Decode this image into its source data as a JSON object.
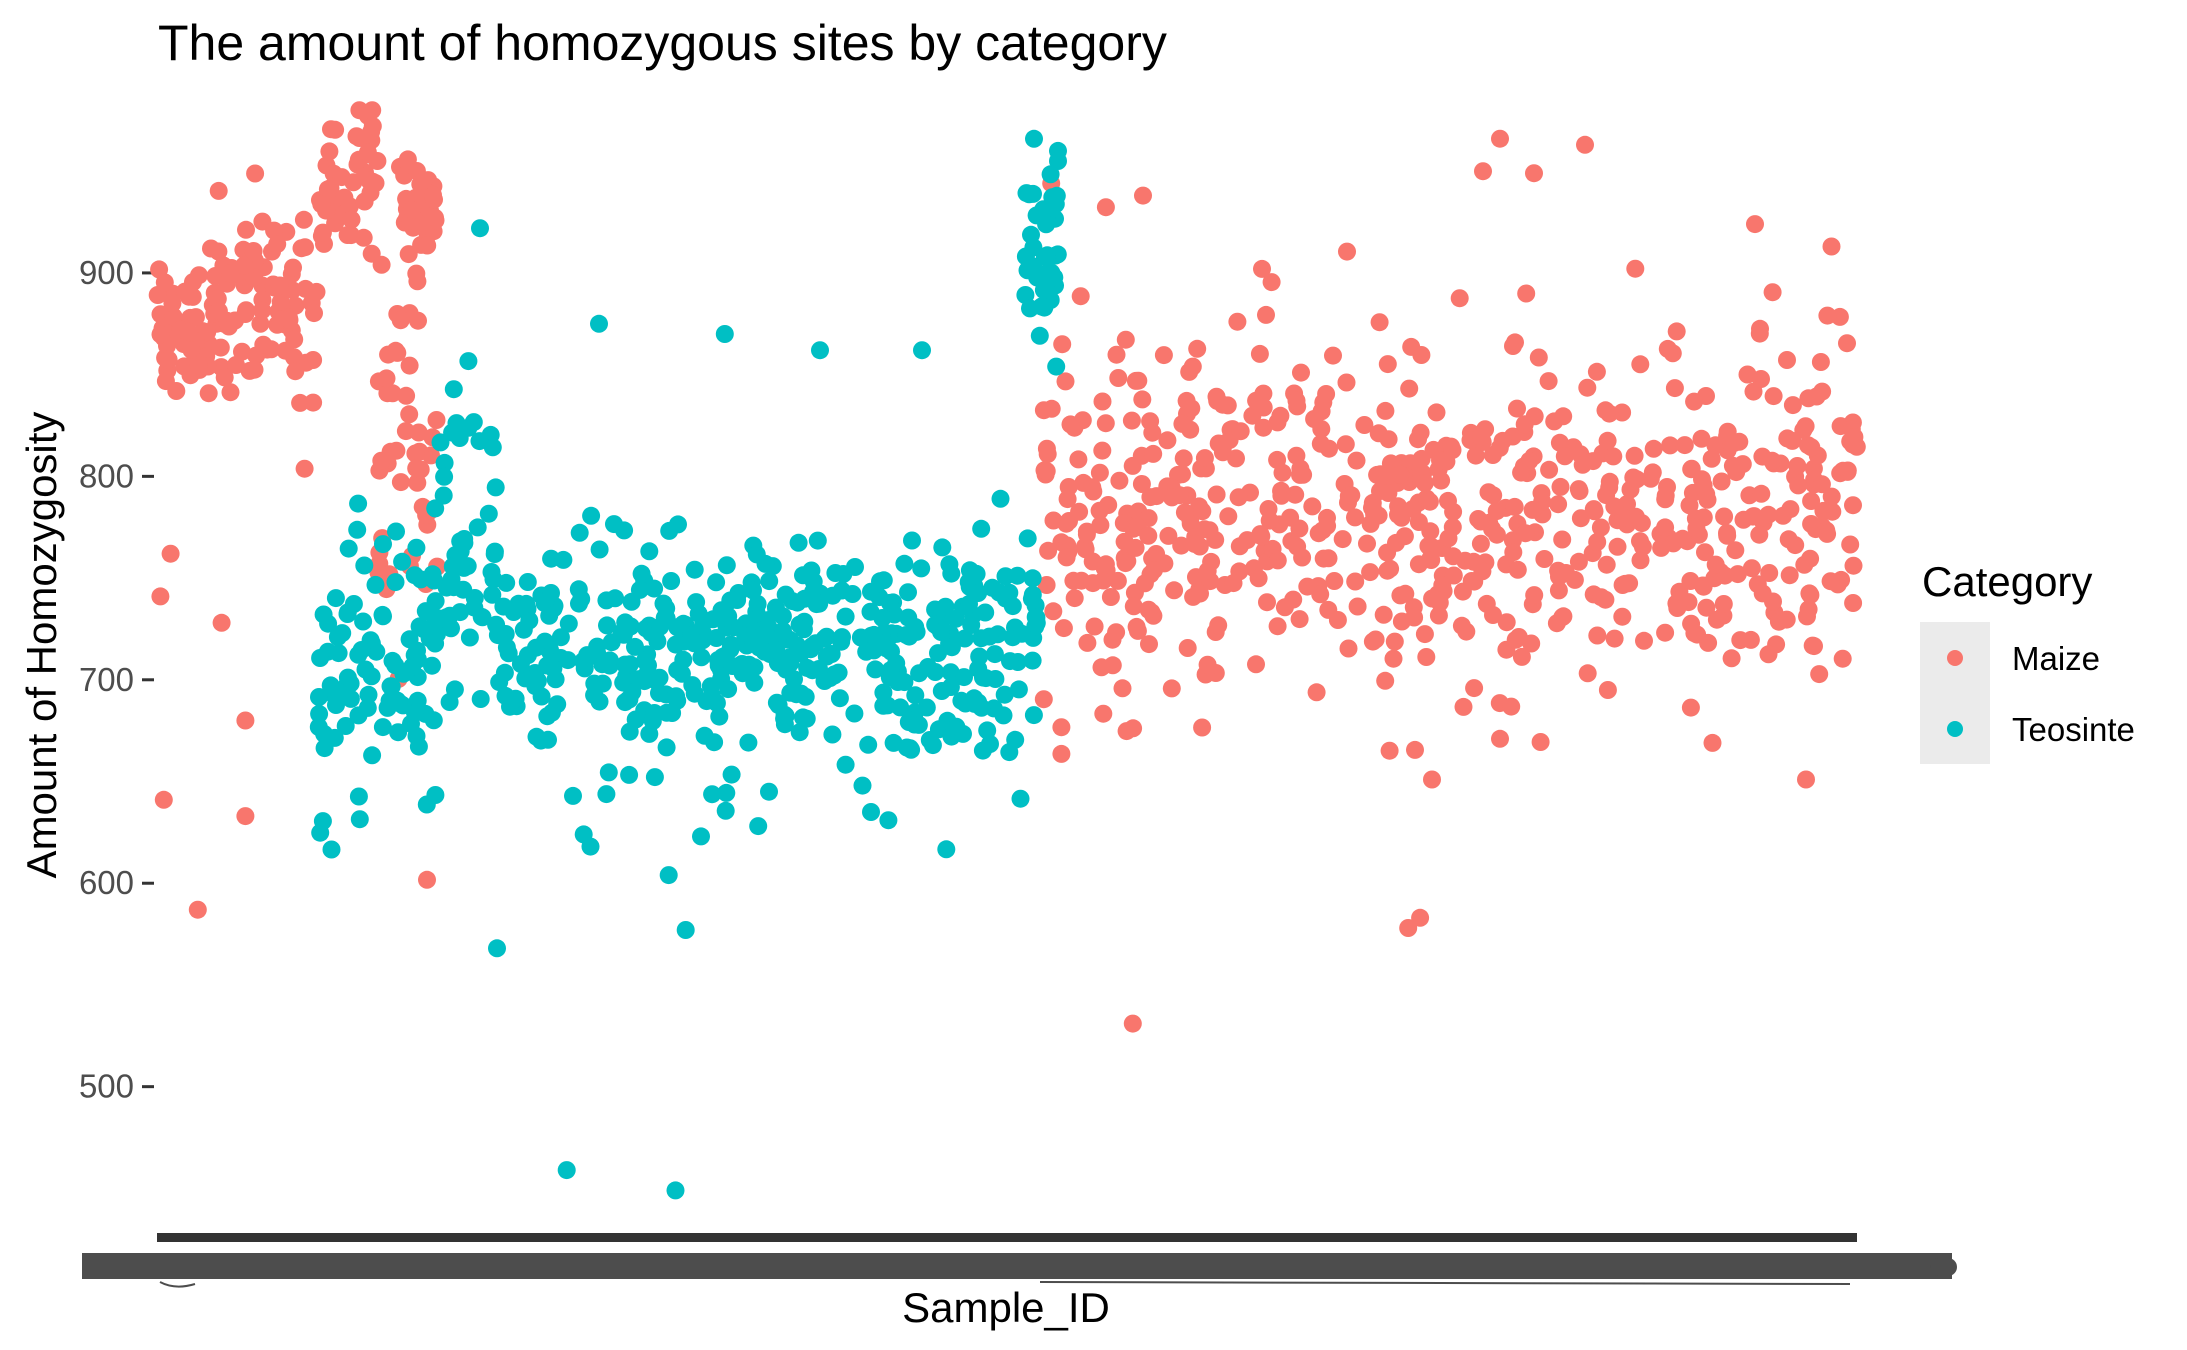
{
  "chart_data": {
    "type": "scatter",
    "title": "The amount of homozygous sites by category",
    "xlabel": "Sample_ID",
    "ylabel": "Amount of Homozygosity",
    "x_axis": "categorical, one position per sample; tick labels overplotted and illegible",
    "y_ticks": [
      500,
      600,
      700,
      800,
      900
    ],
    "ylim": [
      432,
      985
    ],
    "grid": false,
    "legend": {
      "title": "Category",
      "position": "right",
      "entries": [
        "Maize",
        "Teosinte"
      ]
    },
    "colors": {
      "Maize": "#F8766D",
      "Teosinte": "#00BFC4"
    },
    "series": [
      {
        "name": "Maize",
        "segments": [
          {
            "x_range": [
              0.0,
              0.095
            ],
            "y_center": 880,
            "y_spread": 22
          },
          {
            "x_range": [
              0.095,
              0.13
            ],
            "y_center": 945,
            "y_spread": 18
          },
          {
            "x_range": [
              0.13,
              0.165
            ],
            "y_center": 800,
            "y_spread": 55
          },
          {
            "x_range": [
              0.145,
              0.165
            ],
            "y_center": 930,
            "y_spread": 15
          },
          {
            "x_range": [
              0.52,
              1.0
            ],
            "y_center": 780,
            "y_spread": 45
          }
        ],
        "outliers": [
          {
            "x": 0.004,
            "y": 641
          },
          {
            "x": 0.024,
            "y": 587
          },
          {
            "x": 0.052,
            "y": 633
          },
          {
            "x": 0.052,
            "y": 680
          },
          {
            "x": 0.038,
            "y": 728
          },
          {
            "x": 0.008,
            "y": 762
          },
          {
            "x": 0.002,
            "y": 741
          },
          {
            "x": 0.574,
            "y": 531
          },
          {
            "x": 0.736,
            "y": 578
          },
          {
            "x": 0.743,
            "y": 583
          },
          {
            "x": 0.75,
            "y": 651
          },
          {
            "x": 0.79,
            "y": 966
          },
          {
            "x": 0.84,
            "y": 963
          },
          {
            "x": 0.78,
            "y": 950
          },
          {
            "x": 0.81,
            "y": 949
          },
          {
            "x": 0.58,
            "y": 938
          },
          {
            "x": 0.94,
            "y": 924
          },
          {
            "x": 0.97,
            "y": 651
          },
          {
            "x": 0.915,
            "y": 669
          },
          {
            "x": 0.79,
            "y": 671
          },
          {
            "x": 0.526,
            "y": 944
          },
          {
            "x": 0.65,
            "y": 902
          },
          {
            "x": 0.985,
            "y": 913
          }
        ]
      },
      {
        "name": "Teosinte",
        "segments": [
          {
            "x_range": [
              0.095,
              0.13
            ],
            "y_center": 710,
            "y_spread": 40
          },
          {
            "x_range": [
              0.13,
              0.165
            ],
            "y_center": 710,
            "y_spread": 35
          },
          {
            "x_range": [
              0.165,
              0.2
            ],
            "y_center": 780,
            "y_spread": 40
          },
          {
            "x_range": [
              0.2,
              0.52
            ],
            "y_center": 712,
            "y_spread": 28
          },
          {
            "x_range": [
              0.51,
              0.53
            ],
            "y_center": 915,
            "y_spread": 22
          }
        ],
        "outliers": [
          {
            "x": 0.241,
            "y": 459
          },
          {
            "x": 0.305,
            "y": 449
          },
          {
            "x": 0.2,
            "y": 568
          },
          {
            "x": 0.301,
            "y": 604
          },
          {
            "x": 0.311,
            "y": 577
          },
          {
            "x": 0.251,
            "y": 624
          },
          {
            "x": 0.255,
            "y": 618
          },
          {
            "x": 0.32,
            "y": 623
          },
          {
            "x": 0.19,
            "y": 922
          },
          {
            "x": 0.26,
            "y": 875
          },
          {
            "x": 0.334,
            "y": 870
          },
          {
            "x": 0.45,
            "y": 862
          },
          {
            "x": 0.39,
            "y": 862
          },
          {
            "x": 0.53,
            "y": 960
          },
          {
            "x": 0.53,
            "y": 955
          },
          {
            "x": 0.42,
            "y": 635
          },
          {
            "x": 0.36,
            "y": 645
          },
          {
            "x": 0.415,
            "y": 648
          }
        ]
      }
    ]
  }
}
